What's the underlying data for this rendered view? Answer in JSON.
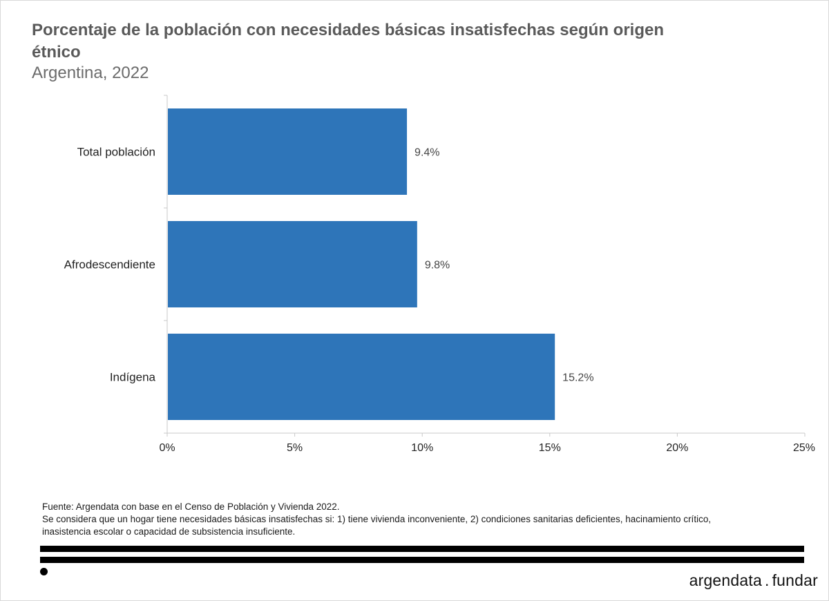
{
  "title": "Porcentaje de la población con necesidades básicas insatisfechas según origen étnico",
  "subtitle": "Argentina, 2022",
  "chart_data": {
    "type": "bar",
    "orientation": "horizontal",
    "categories": [
      "Total población",
      "Afrodescendiente",
      "Indígena"
    ],
    "values": [
      9.4,
      9.8,
      15.2
    ],
    "value_labels": [
      "9.4%",
      "9.8%",
      "15.2%"
    ],
    "xlim": [
      0,
      25
    ],
    "xticks": [
      0,
      5,
      10,
      15,
      20,
      25
    ],
    "xtick_labels": [
      "0%",
      "5%",
      "10%",
      "15%",
      "20%",
      "25%"
    ],
    "bar_color": "#2e75b9",
    "grid": false
  },
  "footnote": {
    "source": "Fuente: Argendata con base en el Censo de Población y Vivienda 2022.",
    "note_line1": "Se considera que un hogar tiene necesidades básicas insatisfechas si: 1) tiene vivienda inconveniente, 2) condiciones sanitarias deficientes, hacinamiento crítico,",
    "note_line2": "inasistencia escolar o capacidad de subsistencia insuficiente."
  },
  "brand": {
    "left": "argendata",
    "separator": ".",
    "right": "fundar"
  }
}
